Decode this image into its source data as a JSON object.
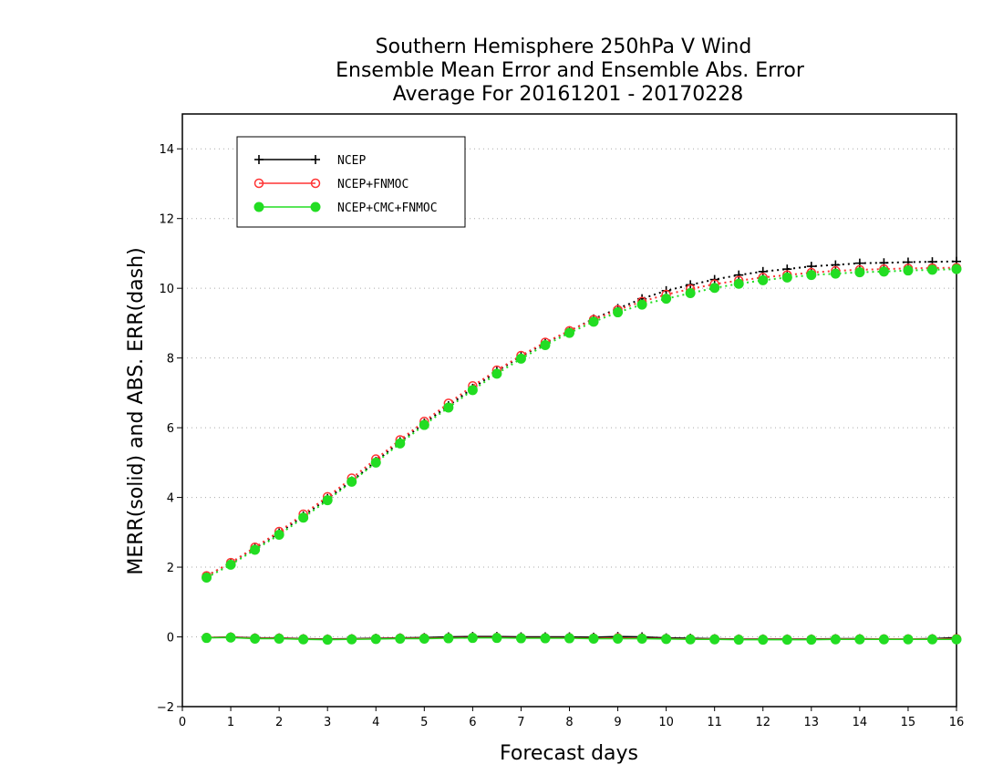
{
  "chart_data": {
    "type": "line",
    "title": [
      "Southern Hemisphere 250hPa V Wind",
      "Ensemble Mean Error and Ensemble Abs. Error",
      "Average For 20161201 - 20170228"
    ],
    "xlabel": "Forecast days",
    "ylabel": "MERR(solid) and ABS. ERR(dash)",
    "xlim": [
      0,
      16
    ],
    "ylim": [
      -2,
      15
    ],
    "xticks": [
      "0",
      "1",
      "2",
      "3",
      "4",
      "5",
      "6",
      "7",
      "8",
      "9",
      "10",
      "11",
      "12",
      "13",
      "14",
      "15",
      "16"
    ],
    "yticks": [
      "-2",
      "0",
      "2",
      "4",
      "6",
      "8",
      "10",
      "12",
      "14"
    ],
    "grid": "horizontal dotted",
    "legend_position": "top-left",
    "x": [
      0.5,
      1,
      1.5,
      2,
      2.5,
      3,
      3.5,
      4,
      4.5,
      5,
      5.5,
      6,
      6.5,
      7,
      7.5,
      8,
      8.5,
      9,
      9.5,
      10,
      10.5,
      11,
      11.5,
      12,
      12.5,
      13,
      13.5,
      14,
      14.5,
      15,
      15.5,
      16
    ],
    "series": [
      {
        "name": "NCEP",
        "color": "#000000",
        "marker": "plus",
        "abs_err": [
          1.75,
          2.12,
          2.55,
          2.98,
          3.47,
          3.97,
          4.47,
          5.03,
          5.6,
          6.13,
          6.63,
          7.13,
          7.62,
          8.05,
          8.43,
          8.78,
          9.12,
          9.42,
          9.7,
          9.93,
          10.1,
          10.25,
          10.38,
          10.48,
          10.55,
          10.63,
          10.67,
          10.72,
          10.73,
          10.75,
          10.76,
          10.77
        ],
        "mean_err": [
          -0.02,
          0.0,
          -0.03,
          -0.03,
          -0.05,
          -0.06,
          -0.05,
          -0.04,
          -0.03,
          -0.02,
          0.0,
          0.01,
          0.01,
          0.0,
          0.0,
          0.0,
          -0.01,
          0.01,
          0.0,
          -0.03,
          -0.04,
          -0.05,
          -0.06,
          -0.06,
          -0.06,
          -0.06,
          -0.05,
          -0.05,
          -0.06,
          -0.06,
          -0.05,
          -0.02
        ]
      },
      {
        "name": "NCEP+FNMOC",
        "color": "#ff3333",
        "marker": "open-circle",
        "abs_err": [
          1.75,
          2.13,
          2.57,
          3.02,
          3.52,
          4.02,
          4.55,
          5.1,
          5.65,
          6.18,
          6.7,
          7.2,
          7.65,
          8.07,
          8.45,
          8.78,
          9.1,
          9.38,
          9.62,
          9.82,
          9.98,
          10.12,
          10.22,
          10.31,
          10.38,
          10.45,
          10.5,
          10.53,
          10.55,
          10.57,
          10.58,
          10.59
        ],
        "mean_err": [
          -0.02,
          -0.01,
          -0.04,
          -0.04,
          -0.06,
          -0.07,
          -0.06,
          -0.05,
          -0.04,
          -0.04,
          -0.03,
          -0.02,
          -0.02,
          -0.03,
          -0.03,
          -0.03,
          -0.04,
          -0.03,
          -0.04,
          -0.05,
          -0.06,
          -0.06,
          -0.07,
          -0.07,
          -0.07,
          -0.07,
          -0.06,
          -0.06,
          -0.06,
          -0.06,
          -0.06,
          -0.05
        ]
      },
      {
        "name": "NCEP+CMC+FNMOC",
        "color": "#22dd22",
        "marker": "filled-circle",
        "abs_err": [
          1.7,
          2.07,
          2.5,
          2.93,
          3.42,
          3.92,
          4.45,
          5.0,
          5.55,
          6.08,
          6.58,
          7.08,
          7.55,
          7.98,
          8.37,
          8.72,
          9.04,
          9.31,
          9.53,
          9.7,
          9.86,
          10.01,
          10.13,
          10.23,
          10.31,
          10.38,
          10.42,
          10.46,
          10.48,
          10.51,
          10.53,
          10.55
        ],
        "mean_err": [
          -0.03,
          -0.02,
          -0.05,
          -0.05,
          -0.07,
          -0.08,
          -0.07,
          -0.06,
          -0.05,
          -0.05,
          -0.04,
          -0.03,
          -0.03,
          -0.04,
          -0.04,
          -0.04,
          -0.05,
          -0.05,
          -0.05,
          -0.06,
          -0.07,
          -0.07,
          -0.08,
          -0.08,
          -0.08,
          -0.08,
          -0.07,
          -0.07,
          -0.07,
          -0.07,
          -0.07,
          -0.07
        ]
      }
    ]
  }
}
